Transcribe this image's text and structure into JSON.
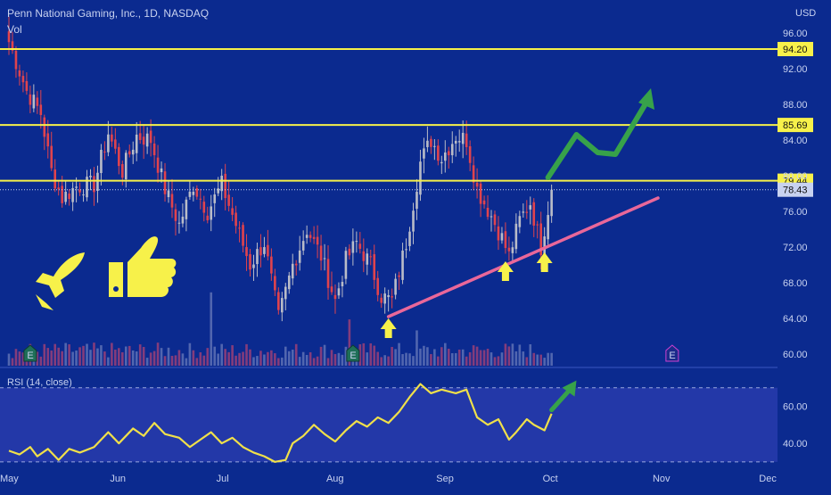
{
  "header": {
    "title": "Penn National Gaming, Inc., 1D, NASDAQ",
    "vol_label": "Vol"
  },
  "colors": {
    "background": "#0b2a8f",
    "rsi_band": "#2338a8",
    "up_candle": "#b9bcc8",
    "down_candle": "#e0434d",
    "level_line": "#f7f14a",
    "trend_line": "#e9679a",
    "rsi_line": "#f0e04a",
    "arrow_green": "#37a24a",
    "arrow_yellow": "#f7f14a",
    "vol_up": "#5e71b5",
    "vol_down": "#9a3f78",
    "earnings_badge": "#1f6f58"
  },
  "chart_data": [
    {
      "type": "candlestick",
      "title": "Penn National Gaming, Inc., 1D, NASDAQ",
      "currency_label": "USD",
      "y_ticks": [
        "96.00",
        "92.00",
        "88.00",
        "84.00",
        "80.00",
        "76.00",
        "72.00",
        "68.00",
        "64.00",
        "60.00"
      ],
      "ylim": [
        57.5,
        97.5
      ],
      "x_ticks": [
        "May",
        "Jun",
        "Jul",
        "Aug",
        "Sep",
        "Oct",
        "Nov",
        "Dec"
      ],
      "x_tick_days": [
        0,
        31,
        61,
        92,
        123,
        153,
        184,
        214
      ],
      "horizontal_levels": [
        {
          "label": "94.20",
          "value": 94.2
        },
        {
          "label": "85.69",
          "value": 85.69
        },
        {
          "label": "79.44",
          "value": 79.44
        }
      ],
      "last_price": {
        "label": "78.43",
        "value": 78.43
      },
      "trendline": {
        "from": {
          "day": 107,
          "value": 64.2
        },
        "to": {
          "day": 183,
          "value": 77.5
        }
      },
      "earnings_markers": [
        {
          "day": 6,
          "label": "E"
        },
        {
          "day": 97,
          "label": "E"
        },
        {
          "day": 187,
          "label": "E"
        }
      ],
      "annotations": {
        "yellow_arrows_up": [
          {
            "day": 107,
            "value": 62.8
          },
          {
            "day": 140,
            "value": 69.2
          },
          {
            "day": 151,
            "value": 70.2
          }
        ],
        "green_zigzag": [
          {
            "day": 152,
            "value": 79.8
          },
          {
            "day": 160,
            "value": 84.6
          },
          {
            "day": 166,
            "value": 82.6
          },
          {
            "day": 171,
            "value": 82.4
          },
          {
            "day": 180,
            "value": 88.4
          }
        ]
      },
      "pivot_closes": [
        {
          "day": 0,
          "close": 95.0
        },
        {
          "day": 5,
          "close": 89.5
        },
        {
          "day": 9,
          "close": 87.0
        },
        {
          "day": 12,
          "close": 80.5
        },
        {
          "day": 15,
          "close": 77.5
        },
        {
          "day": 19,
          "close": 78.8
        },
        {
          "day": 24,
          "close": 79.0
        },
        {
          "day": 28,
          "close": 84.8
        },
        {
          "day": 32,
          "close": 80.5
        },
        {
          "day": 36,
          "close": 84.5
        },
        {
          "day": 40,
          "close": 84.0
        },
        {
          "day": 44,
          "close": 78.5
        },
        {
          "day": 48,
          "close": 74.5
        },
        {
          "day": 52,
          "close": 79.0
        },
        {
          "day": 56,
          "close": 76.0
        },
        {
          "day": 60,
          "close": 79.0
        },
        {
          "day": 64,
          "close": 74.5
        },
        {
          "day": 68,
          "close": 70.0
        },
        {
          "day": 72,
          "close": 72.5
        },
        {
          "day": 76,
          "close": 64.0
        },
        {
          "day": 80,
          "close": 70.0
        },
        {
          "day": 84,
          "close": 74.0
        },
        {
          "day": 88,
          "close": 71.0
        },
        {
          "day": 92,
          "close": 66.0
        },
        {
          "day": 95,
          "close": 70.5
        },
        {
          "day": 98,
          "close": 72.5
        },
        {
          "day": 102,
          "close": 70.0
        },
        {
          "day": 105,
          "close": 66.5
        },
        {
          "day": 108,
          "close": 66.0
        },
        {
          "day": 112,
          "close": 72.5
        },
        {
          "day": 116,
          "close": 81.5
        },
        {
          "day": 119,
          "close": 84.0
        },
        {
          "day": 122,
          "close": 82.0
        },
        {
          "day": 126,
          "close": 84.5
        },
        {
          "day": 129,
          "close": 84.0
        },
        {
          "day": 132,
          "close": 78.5
        },
        {
          "day": 136,
          "close": 75.5
        },
        {
          "day": 139,
          "close": 73.0
        },
        {
          "day": 141,
          "close": 71.0
        },
        {
          "day": 144,
          "close": 75.0
        },
        {
          "day": 147,
          "close": 77.0
        },
        {
          "day": 150,
          "close": 72.0
        },
        {
          "day": 153,
          "close": 78.43
        }
      ]
    },
    {
      "type": "line",
      "series": [
        {
          "name": "RSI (14, close)"
        }
      ],
      "y_ticks": [
        "60.00",
        "40.00"
      ],
      "ylim": [
        28,
        79
      ],
      "upper_band": 70,
      "lower_band": 30,
      "points": [
        {
          "day": 0,
          "value": 36
        },
        {
          "day": 3,
          "value": 34
        },
        {
          "day": 6,
          "value": 38
        },
        {
          "day": 8,
          "value": 33
        },
        {
          "day": 11,
          "value": 37
        },
        {
          "day": 14,
          "value": 31
        },
        {
          "day": 17,
          "value": 37
        },
        {
          "day": 20,
          "value": 35
        },
        {
          "day": 24,
          "value": 38
        },
        {
          "day": 28,
          "value": 46
        },
        {
          "day": 31,
          "value": 40
        },
        {
          "day": 35,
          "value": 48
        },
        {
          "day": 38,
          "value": 44
        },
        {
          "day": 41,
          "value": 51
        },
        {
          "day": 44,
          "value": 45
        },
        {
          "day": 48,
          "value": 43
        },
        {
          "day": 51,
          "value": 38
        },
        {
          "day": 54,
          "value": 42
        },
        {
          "day": 57,
          "value": 46
        },
        {
          "day": 60,
          "value": 40
        },
        {
          "day": 63,
          "value": 43
        },
        {
          "day": 66,
          "value": 38
        },
        {
          "day": 69,
          "value": 35
        },
        {
          "day": 72,
          "value": 33
        },
        {
          "day": 75,
          "value": 30
        },
        {
          "day": 78,
          "value": 31
        },
        {
          "day": 80,
          "value": 40
        },
        {
          "day": 83,
          "value": 44
        },
        {
          "day": 86,
          "value": 50
        },
        {
          "day": 89,
          "value": 45
        },
        {
          "day": 92,
          "value": 41
        },
        {
          "day": 95,
          "value": 47
        },
        {
          "day": 98,
          "value": 52
        },
        {
          "day": 101,
          "value": 49
        },
        {
          "day": 104,
          "value": 54
        },
        {
          "day": 107,
          "value": 51
        },
        {
          "day": 110,
          "value": 57
        },
        {
          "day": 113,
          "value": 65
        },
        {
          "day": 116,
          "value": 72
        },
        {
          "day": 119,
          "value": 67
        },
        {
          "day": 122,
          "value": 69
        },
        {
          "day": 126,
          "value": 67
        },
        {
          "day": 129,
          "value": 69
        },
        {
          "day": 132,
          "value": 54
        },
        {
          "day": 135,
          "value": 50
        },
        {
          "day": 138,
          "value": 53
        },
        {
          "day": 141,
          "value": 42
        },
        {
          "day": 143,
          "value": 46
        },
        {
          "day": 146,
          "value": 53
        },
        {
          "day": 148,
          "value": 50
        },
        {
          "day": 151,
          "value": 47
        },
        {
          "day": 153,
          "value": 56
        }
      ],
      "annotations": {
        "green_arrow": [
          {
            "day": 153,
            "value": 58
          },
          {
            "day": 159,
            "value": 71
          }
        ]
      }
    }
  ]
}
